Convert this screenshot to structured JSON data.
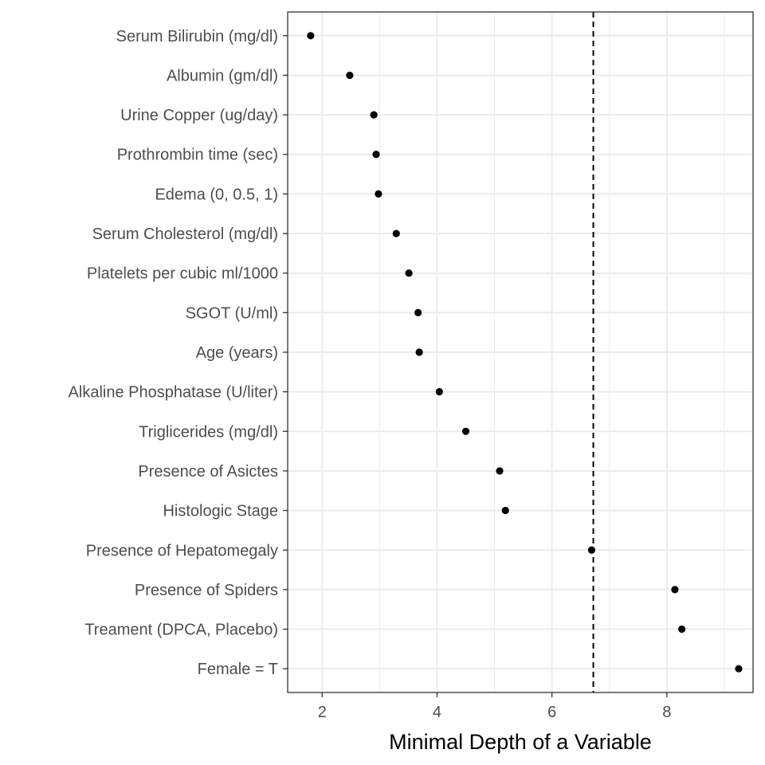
{
  "chart_data": {
    "type": "scatter",
    "title": "",
    "xlabel": "Minimal Depth of a Variable",
    "ylabel": "",
    "xlim": [
      1.4,
      9.5
    ],
    "x_ticks": [
      2,
      4,
      6,
      8
    ],
    "grid": true,
    "threshold": 6.72,
    "categories": [
      "Serum Bilirubin (mg/dl)",
      "Albumin (gm/dl)",
      "Urine Copper (ug/day)",
      "Prothrombin time (sec)",
      "Edema (0, 0.5, 1)",
      "Serum Cholesterol (mg/dl)",
      "Platelets per cubic ml/1000",
      "SGOT (U/ml)",
      "Age (years)",
      "Alkaline Phosphatase (U/liter)",
      "Triglicerides (mg/dl)",
      "Presence of Asictes",
      "Histologic Stage",
      "Presence of Hepatomegaly",
      "Presence of Spiders",
      "Treament (DPCA, Placebo)",
      "Female = T"
    ],
    "values": [
      1.8,
      2.48,
      2.9,
      2.94,
      2.98,
      3.29,
      3.51,
      3.67,
      3.69,
      4.04,
      4.5,
      5.09,
      5.19,
      6.69,
      8.14,
      8.26,
      9.25
    ]
  },
  "colors": {
    "point": "#000000",
    "grid": "#ebebeb",
    "border": "#333333",
    "threshold": "#000000"
  }
}
